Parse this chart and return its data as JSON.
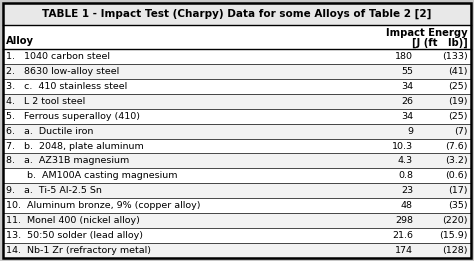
{
  "title": "TABLE 1 - Impact Test (Charpy) Data for some Alloys of Table 2 [2]",
  "col_header_left": "Alloy",
  "col_header_right_line1": "Impact Energy",
  "col_header_right_line2": "[J (ft   lb)]",
  "rows": [
    {
      "label": "1.   1040 carbon steel",
      "val1": "180",
      "val2": "(133)"
    },
    {
      "label": "2.   8630 low-alloy steel",
      "val1": "55",
      "val2": "(41)"
    },
    {
      "label": "3.   c.  410 stainless steel",
      "val1": "34",
      "val2": "(25)"
    },
    {
      "label": "4.   L 2 tool steel",
      "val1": "26",
      "val2": "(19)"
    },
    {
      "label": "5.   Ferrous superalloy (410)",
      "val1": "34",
      "val2": "(25)"
    },
    {
      "label": "6.   a.  Ductile iron",
      "val1": "9",
      "val2": "(7)"
    },
    {
      "label": "7.   b.  2048, plate aluminum",
      "val1": "10.3",
      "val2": "(7.6)"
    },
    {
      "label": "8.   a.  AZ31B magnesium",
      "val1": "4.3",
      "val2": "(3.2)"
    },
    {
      "label": "       b.  AM100A casting magnesium",
      "val1": "0.8",
      "val2": "(0.6)"
    },
    {
      "label": "9.   a.  Ti-5 Al-2.5 Sn",
      "val1": "23",
      "val2": "(17)"
    },
    {
      "label": "10.  Aluminum bronze, 9% (copper alloy)",
      "val1": "48",
      "val2": "(35)"
    },
    {
      "label": "11.  Monel 400 (nickel alloy)",
      "val1": "298",
      "val2": "(220)"
    },
    {
      "label": "13.  50:50 solder (lead alloy)",
      "val1": "21.6",
      "val2": "(15.9)"
    },
    {
      "label": "14.  Nb-1 Zr (refractory metal)",
      "val1": "174",
      "val2": "(128)"
    }
  ],
  "bg_color": "#ffffff",
  "fig_bg": "#c8c8c8",
  "border_color": "#000000",
  "font_size": 6.8,
  "title_font_size": 7.5,
  "header_font_size": 7.2
}
